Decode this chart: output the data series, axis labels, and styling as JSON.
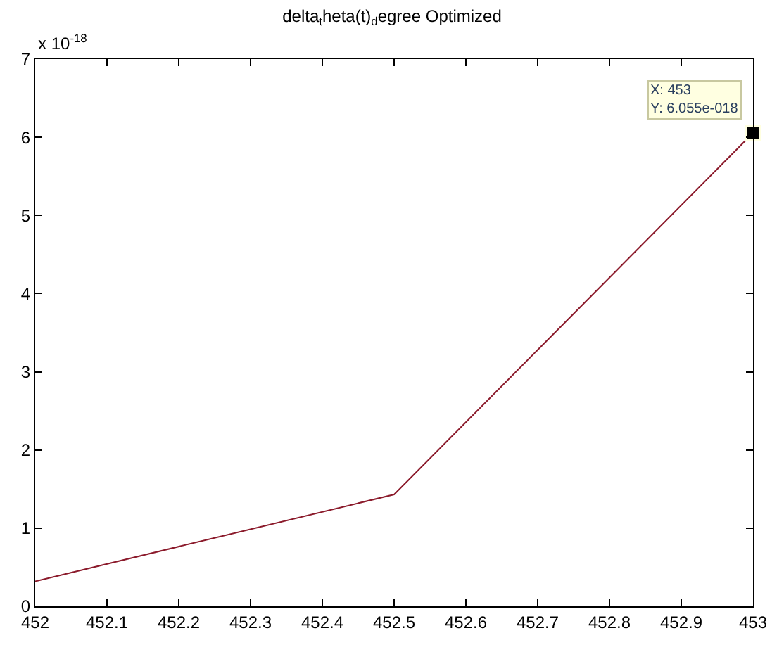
{
  "chart_data": {
    "type": "line",
    "title": "delta$_{t}$heta(t)$_{d}$egree Optimized",
    "x": [
      452,
      452.5,
      453
    ],
    "series": [
      {
        "color": "#8b1a2b",
        "values": [
          0.32,
          1.43,
          6.055
        ]
      }
    ],
    "xlim": [
      452,
      453
    ],
    "xticks": [
      452,
      452.1,
      452.2,
      452.3,
      452.4,
      452.5,
      452.6,
      452.7,
      452.8,
      452.9,
      453
    ],
    "ylim": [
      0,
      7
    ],
    "yticks": [
      0,
      1,
      2,
      3,
      4,
      5,
      6,
      7
    ],
    "annotations": [
      "x 10$^{-18}$",
      {
        "text": "X: 453\nY: 6.055e-018",
        "x": 453,
        "y": 6.055
      }
    ],
    "marker": "none",
    "line_style": "solid"
  }
}
